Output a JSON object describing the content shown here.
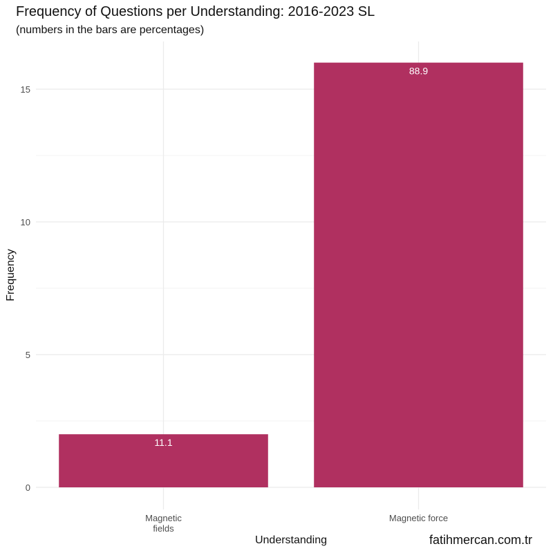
{
  "chart_data": {
    "type": "bar",
    "title": "Frequency of Questions per Understanding: 2016-2023 SL",
    "subtitle": "(numbers in the bars are percentages)",
    "xlabel": "Understanding",
    "ylabel": "Frequency",
    "categories": [
      [
        "Magnetic",
        "fields"
      ],
      [
        "Magnetic force"
      ]
    ],
    "values": [
      2,
      16
    ],
    "bar_labels": [
      "11.1",
      "88.9"
    ],
    "yticks": [
      0,
      5,
      10,
      15
    ],
    "ylim": [
      0,
      16.8
    ],
    "grid": true,
    "bar_color": "#b03060",
    "caption": "fatihmercan.com.tr"
  }
}
